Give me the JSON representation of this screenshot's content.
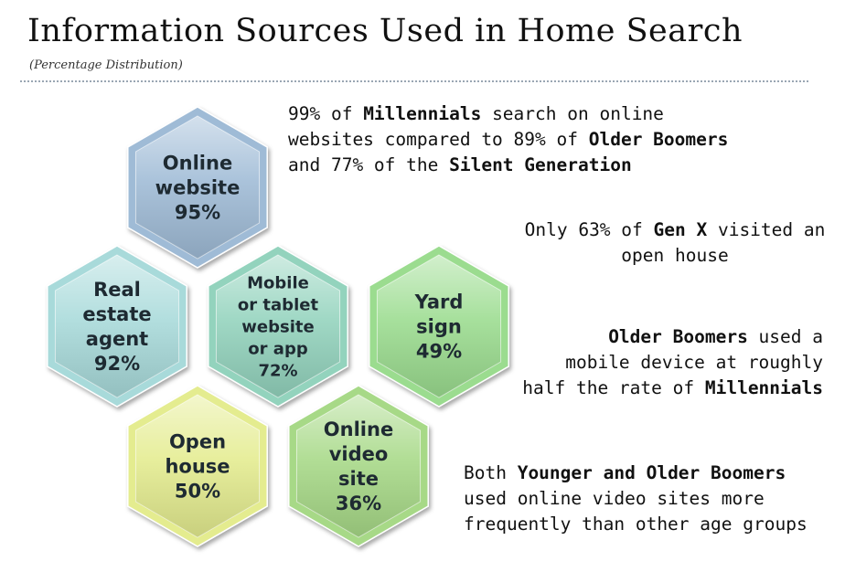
{
  "title": "Information Sources Used in Home Search",
  "subtitle": "(Percentage Distribution)",
  "hexagons": [
    {
      "id": "online-website",
      "lines": [
        "Online",
        "website",
        "95%"
      ],
      "value": 95,
      "color": "#9fbbd6"
    },
    {
      "id": "real-estate-agent",
      "lines": [
        "Real",
        "estate",
        "agent",
        "92%"
      ],
      "value": 92,
      "color": "#a8dada"
    },
    {
      "id": "mobile-app",
      "lines": [
        "Mobile",
        "or tablet",
        "website",
        "or app",
        "72%"
      ],
      "value": 72,
      "color": "#93d3bd"
    },
    {
      "id": "yard-sign",
      "lines": [
        "Yard",
        "sign",
        "49%"
      ],
      "value": 49,
      "color": "#9bdc8f"
    },
    {
      "id": "open-house",
      "lines": [
        "Open",
        "house",
        "50%"
      ],
      "value": 50,
      "color": "#e4ec8f"
    },
    {
      "id": "online-video-site",
      "lines": [
        "Online",
        "video",
        "site",
        "36%"
      ],
      "value": 36,
      "color": "#a7d987"
    }
  ],
  "notes": {
    "n1": {
      "l1": [
        "99% of ",
        "Millennials",
        " search on online"
      ],
      "l2": [
        "websites compared to 89% of ",
        "Older Boomers"
      ],
      "l3": [
        "and 77% of the ",
        "Silent Generation"
      ]
    },
    "n2": {
      "l1": [
        "Only 63% of ",
        "Gen X",
        " visited an"
      ],
      "l2": [
        "open house"
      ]
    },
    "n3": {
      "l1": [
        "Older Boomers",
        " used a"
      ],
      "l2": [
        "mobile device at roughly"
      ],
      "l3": [
        "half the rate of ",
        "Millennials"
      ]
    },
    "n4": {
      "l1": [
        "Both ",
        "Younger and Older Boomers"
      ],
      "l2": [
        "used online video sites more"
      ],
      "l3": [
        "frequently than other age groups"
      ]
    }
  }
}
